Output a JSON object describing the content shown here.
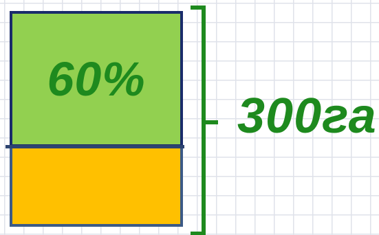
{
  "diagram": {
    "part_top": {
      "label": "60%",
      "fill_color": "#92d050",
      "label_color": "#1e8a1e"
    },
    "part_bottom": {
      "fill_color": "#ffc000"
    },
    "brace": {
      "color": "#1e8a1e"
    },
    "total": {
      "label": "300га",
      "color": "#1e8a1e"
    }
  }
}
